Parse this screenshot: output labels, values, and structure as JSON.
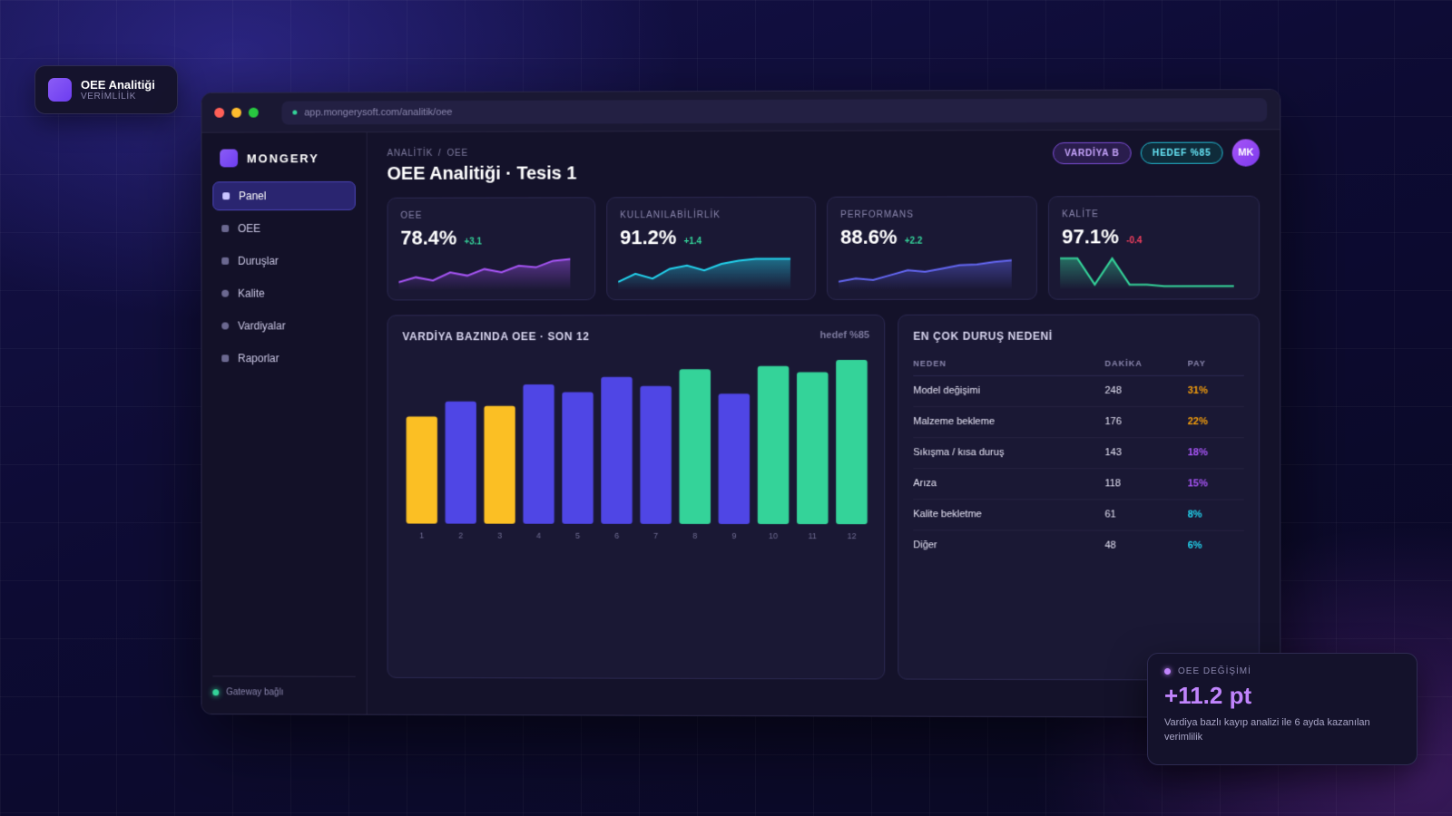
{
  "badge": {
    "title": "OEE Analitiği",
    "subtitle": "VERİMLİLİK"
  },
  "browser": {
    "url": "app.mongerysoft.com/analitik/oee"
  },
  "sidebar": {
    "brand": "MONGERY",
    "items": [
      {
        "label": "Panel"
      },
      {
        "label": "OEE"
      },
      {
        "label": "Duruşlar"
      },
      {
        "label": "Kalite"
      },
      {
        "label": "Vardiyalar"
      },
      {
        "label": "Raporlar"
      }
    ],
    "status": "Gateway bağlı"
  },
  "header": {
    "breadcrumb": [
      "ANALİTİK",
      "/",
      "OEE"
    ],
    "title": "OEE Analitiği · Tesis 1",
    "shift_pill": "VARDİYA B",
    "target_pill": "HEDEF %85",
    "avatar": "MK"
  },
  "kpis": [
    {
      "label": "OEE",
      "value": "78.4%",
      "delta": "+3.1",
      "delta_color": "#34d399",
      "line_color": "#a855f7"
    },
    {
      "label": "KULLANILABİLİRLİK",
      "value": "91.2%",
      "delta": "+1.4",
      "delta_color": "#34d399",
      "line_color": "#22d3ee"
    },
    {
      "label": "PERFORMANS",
      "value": "88.6%",
      "delta": "+2.2",
      "delta_color": "#34d399",
      "line_color": "#6366f1"
    },
    {
      "label": "KALİTE",
      "value": "97.1%",
      "delta": "-0.4",
      "delta_color": "#f43f5e",
      "line_color": "#34d399"
    }
  ],
  "chart_card": {
    "title": "VARDİYA BAZINDA OEE · SON 12",
    "aside": "hedef %85"
  },
  "chart_data": {
    "type": "bar",
    "categories": [
      "1",
      "2",
      "3",
      "4",
      "5",
      "6",
      "7",
      "8",
      "9",
      "10",
      "11",
      "12"
    ],
    "values": [
      70,
      80,
      77,
      91,
      86,
      96,
      90,
      101,
      85,
      103,
      99,
      107
    ],
    "colors": [
      "#fbbf24",
      "#4f46e5",
      "#fbbf24",
      "#4f46e5",
      "#4f46e5",
      "#4f46e5",
      "#4f46e5",
      "#34d399",
      "#4f46e5",
      "#34d399",
      "#34d399",
      "#34d399"
    ],
    "ylim": [
      0,
      110
    ]
  },
  "downtime": {
    "title": "EN ÇOK DURUŞ NEDENİ",
    "columns": [
      "NEDEN",
      "DAKİKA",
      "PAY"
    ],
    "rows": [
      {
        "reason": "Model değişimi",
        "minutes": "248",
        "share": "31%",
        "color": "#f59e0b"
      },
      {
        "reason": "Malzeme bekleme",
        "minutes": "176",
        "share": "22%",
        "color": "#f59e0b"
      },
      {
        "reason": "Sıkışma / kısa duruş",
        "minutes": "143",
        "share": "18%",
        "color": "#a855f7"
      },
      {
        "reason": "Arıza",
        "minutes": "118",
        "share": "15%",
        "color": "#a855f7"
      },
      {
        "reason": "Kalite bekletme",
        "minutes": "61",
        "share": "8%",
        "color": "#22d3ee"
      },
      {
        "reason": "Diğer",
        "minutes": "48",
        "share": "6%",
        "color": "#22d3ee"
      }
    ]
  },
  "oee_change": {
    "label": "OEE DEĞİŞİMİ",
    "value": "+11.2 pt",
    "description": "Vardiya bazlı kayıp analizi ile 6 ayda kazanılan verimlilik"
  }
}
